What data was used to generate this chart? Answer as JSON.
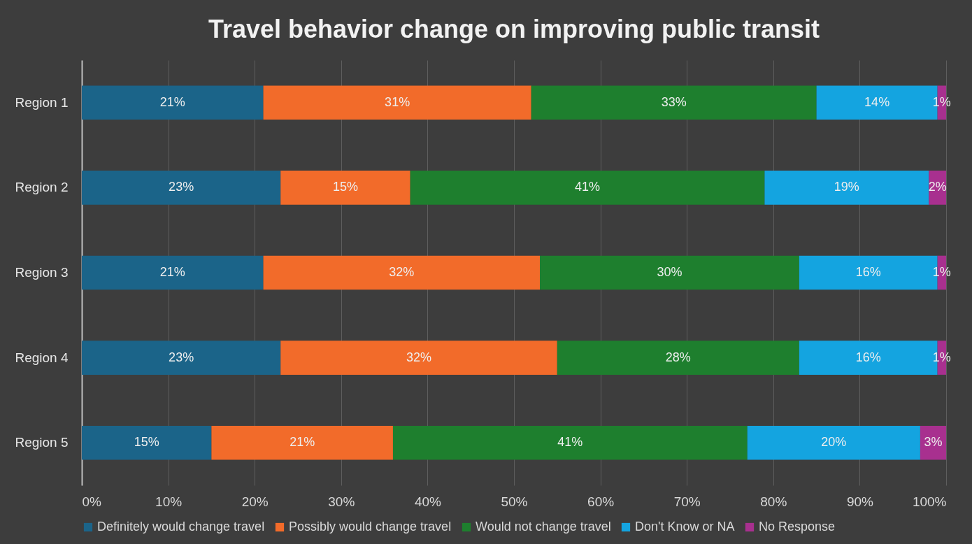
{
  "chart_data": {
    "type": "bar",
    "orientation": "horizontal",
    "stacked": true,
    "title": "Travel behavior change on improving public transit",
    "categories": [
      "Region 1",
      "Region 2",
      "Region 3",
      "Region 4",
      "Region 5"
    ],
    "series": [
      {
        "name": "Definitely would change travel",
        "color": "#1b6489",
        "values": [
          21,
          23,
          21,
          23,
          15
        ],
        "value_labels": [
          "21%",
          "23%",
          "21%",
          "23%",
          "15%"
        ]
      },
      {
        "name": "Possibly would change travel",
        "color": "#f26b2a",
        "values": [
          31,
          15,
          32,
          32,
          21
        ],
        "value_labels": [
          "31%",
          "15%",
          "32%",
          "32%",
          "21%"
        ]
      },
      {
        "name": "Would not change travel",
        "color": "#1e7f2e",
        "values": [
          33,
          41,
          30,
          28,
          41
        ],
        "value_labels": [
          "33%",
          "41%",
          "30%",
          "28%",
          "41%"
        ]
      },
      {
        "name": "Don't Know or NA",
        "color": "#14a4e0",
        "values": [
          14,
          19,
          16,
          16,
          20
        ],
        "value_labels": [
          "14%",
          "19%",
          "16%",
          "16%",
          "20%"
        ]
      },
      {
        "name": "No Response",
        "color": "#a8308f",
        "values": [
          1,
          2,
          1,
          1,
          3
        ],
        "value_labels": [
          "1%",
          "2%",
          "1%",
          "1%",
          "3%"
        ]
      }
    ],
    "xlim": [
      0,
      100
    ],
    "xticks": [
      {
        "value": 0,
        "label": "0%"
      },
      {
        "value": 10,
        "label": "10%"
      },
      {
        "value": 20,
        "label": "20%"
      },
      {
        "value": 30,
        "label": "30%"
      },
      {
        "value": 40,
        "label": "40%"
      },
      {
        "value": 50,
        "label": "50%"
      },
      {
        "value": 60,
        "label": "60%"
      },
      {
        "value": 70,
        "label": "70%"
      },
      {
        "value": 80,
        "label": "80%"
      },
      {
        "value": 90,
        "label": "90%"
      },
      {
        "value": 100,
        "label": "100%"
      }
    ],
    "grid": "x",
    "legend": "bottom"
  }
}
